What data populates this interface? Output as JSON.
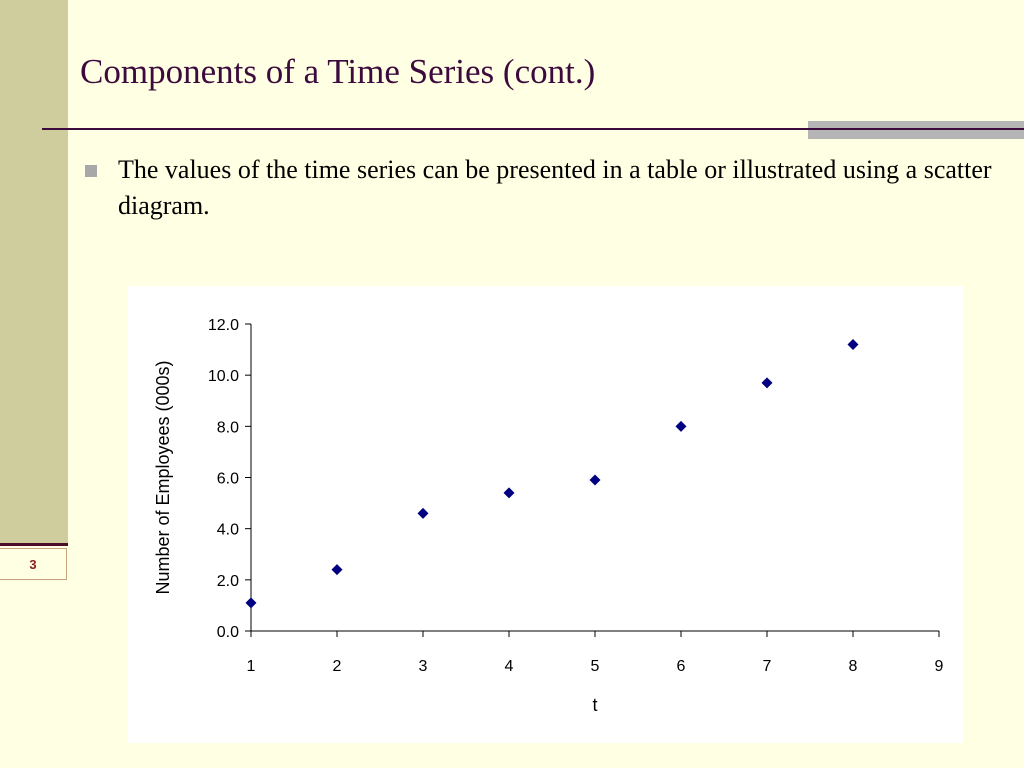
{
  "slide": {
    "title": "Components of a Time Series (cont.)",
    "bullet": "The values of the time series can be presented in a table or illustrated using a scatter diagram.",
    "slide_number": "3"
  },
  "colors": {
    "background": "#FFFFE3",
    "left_band": "#CFCD9E",
    "title": "#3C0A3C",
    "marker": "#000080"
  },
  "chart_data": {
    "type": "scatter",
    "title": "",
    "xlabel": "t",
    "ylabel": "Number of Employees (000s)",
    "xlim": [
      1,
      9
    ],
    "ylim": [
      0,
      12
    ],
    "x_ticks": [
      "1",
      "2",
      "3",
      "4",
      "5",
      "6",
      "7",
      "8",
      "9"
    ],
    "y_ticks": [
      "0.0",
      "2.0",
      "4.0",
      "6.0",
      "8.0",
      "10.0",
      "12.0"
    ],
    "grid": false,
    "marker": "diamond",
    "x": [
      1,
      2,
      3,
      4,
      5,
      6,
      7,
      8
    ],
    "y": [
      1.1,
      2.4,
      4.6,
      5.4,
      5.9,
      8.0,
      9.7,
      11.2
    ]
  }
}
